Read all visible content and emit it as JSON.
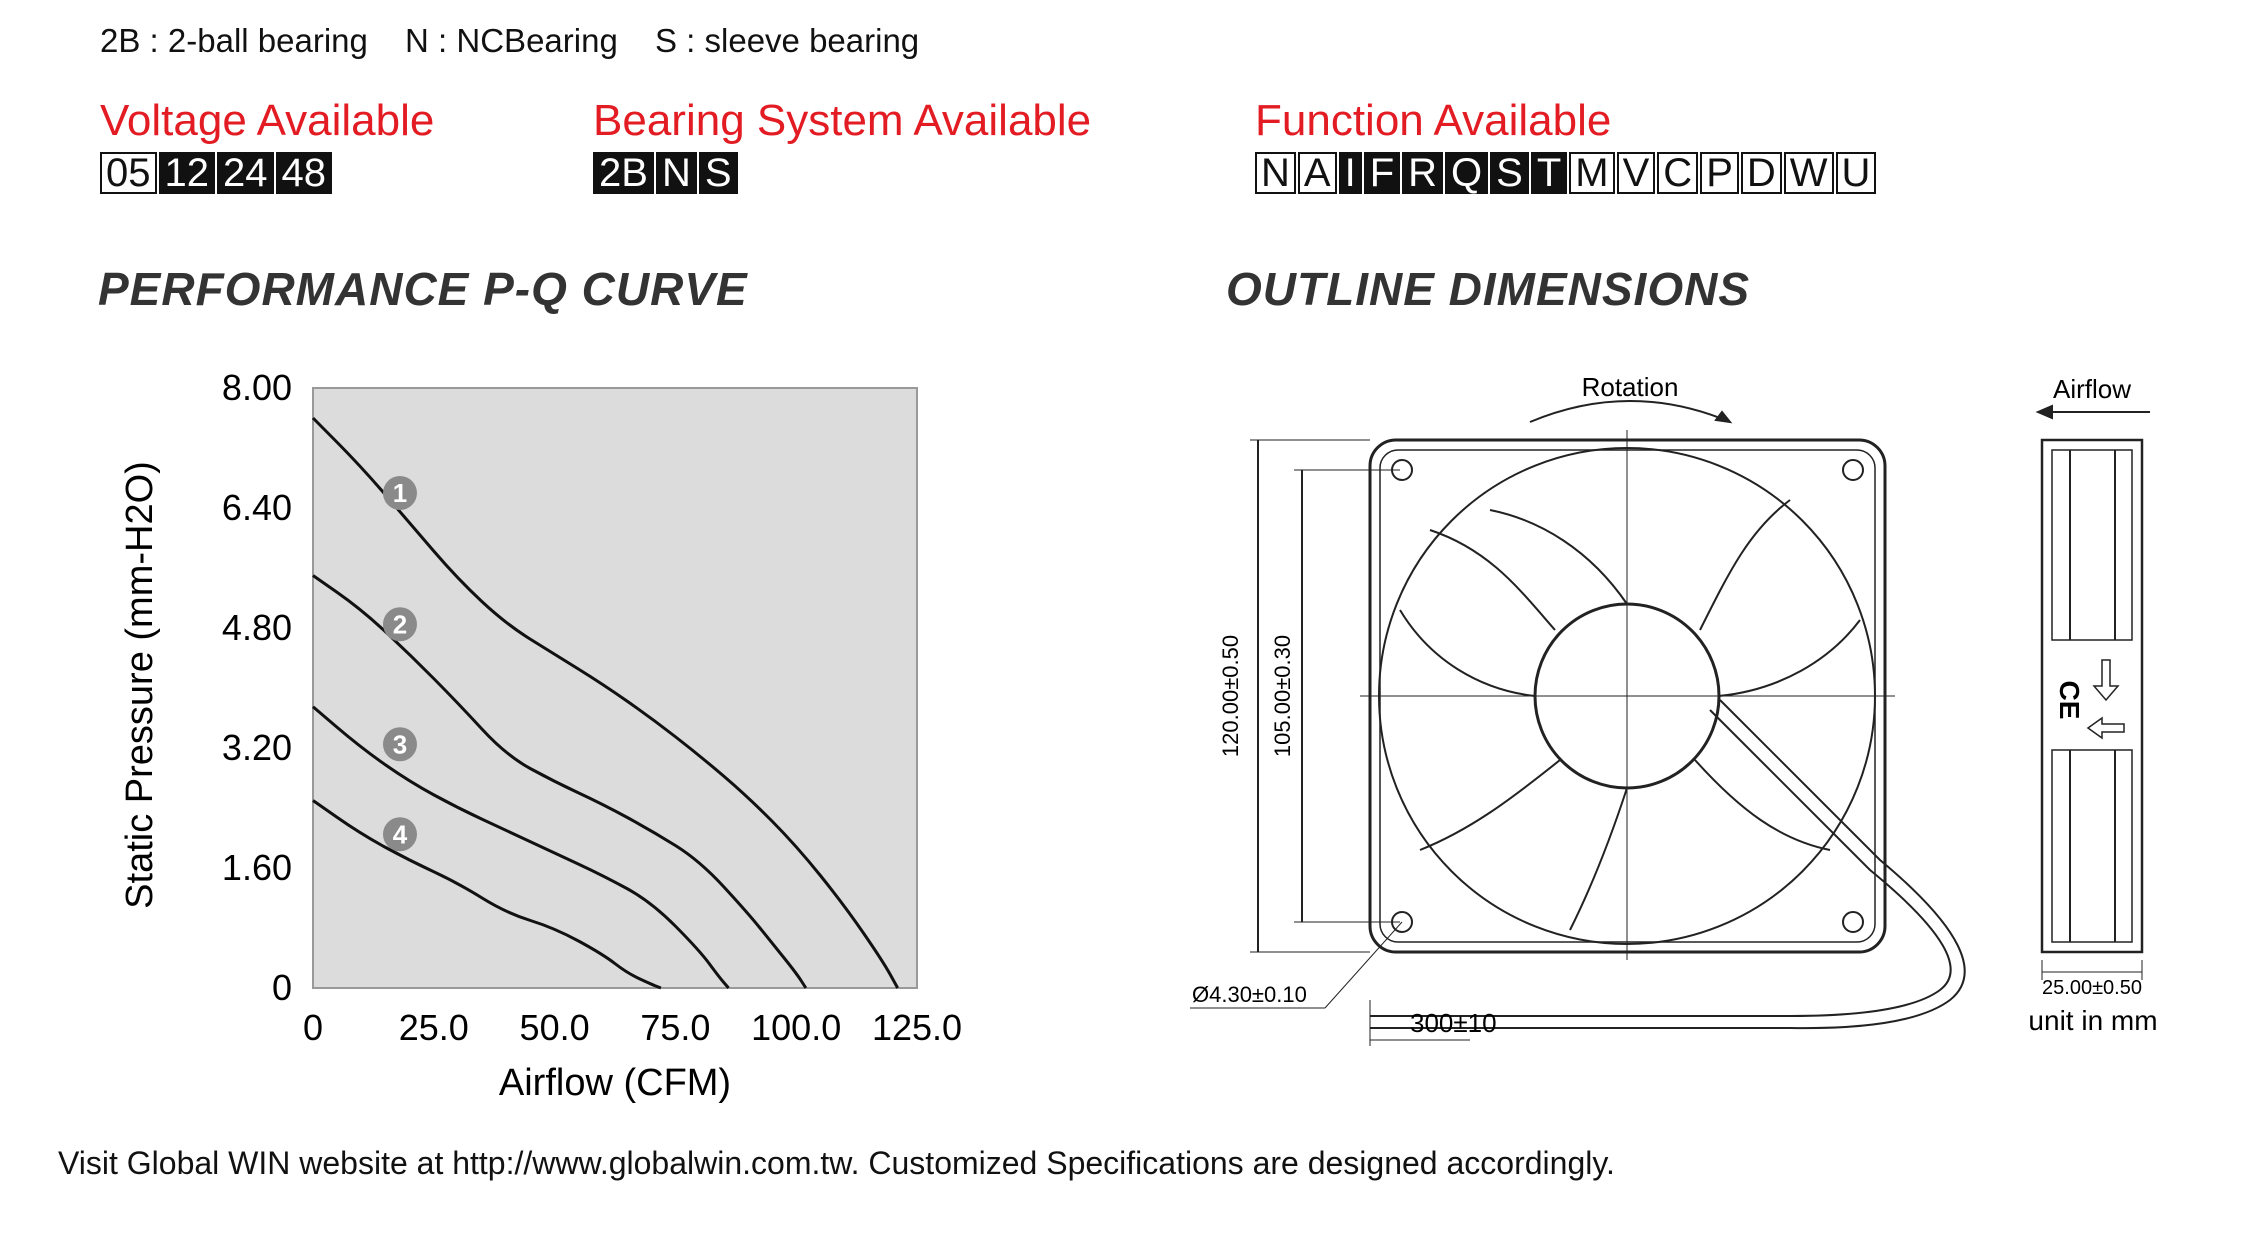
{
  "legend": [
    {
      "code": "2B",
      "desc": "2-ball bearing"
    },
    {
      "code": "N",
      "desc": "NCBearing"
    },
    {
      "code": "S",
      "desc": "sleeve bearing"
    }
  ],
  "legend_sep": " : ",
  "voltage": {
    "title": "Voltage Available",
    "codes": [
      {
        "label": "05",
        "active": false
      },
      {
        "label": "12",
        "active": true
      },
      {
        "label": "24",
        "active": true
      },
      {
        "label": "48",
        "active": true
      }
    ]
  },
  "bearing": {
    "title": "Bearing System Available",
    "codes": [
      {
        "label": "2B",
        "active": true
      },
      {
        "label": "N",
        "active": true
      },
      {
        "label": "S",
        "active": true
      }
    ]
  },
  "function": {
    "title": "Function Available",
    "codes": [
      {
        "label": "N",
        "active": false
      },
      {
        "label": "A",
        "active": false
      },
      {
        "label": "I",
        "active": true
      },
      {
        "label": "F",
        "active": true
      },
      {
        "label": "R",
        "active": true
      },
      {
        "label": "Q",
        "active": true
      },
      {
        "label": "S",
        "active": true
      },
      {
        "label": "T",
        "active": true
      },
      {
        "label": "M",
        "active": false
      },
      {
        "label": "V",
        "active": false
      },
      {
        "label": "C",
        "active": false
      },
      {
        "label": "P",
        "active": false
      },
      {
        "label": "D",
        "active": false
      },
      {
        "label": "W",
        "active": false
      },
      {
        "label": "U",
        "active": false
      }
    ]
  },
  "headings": {
    "curve": "PERFORMANCE P-Q CURVE",
    "outline": "OUTLINE DIMENSIONS"
  },
  "chart_data": {
    "type": "line",
    "xlabel": "Airflow (CFM)",
    "ylabel": "Static Pressure (mm-H2O)",
    "xlim": [
      0,
      125
    ],
    "ylim": [
      0,
      8
    ],
    "xticks": [
      "0",
      "25.0",
      "50.0",
      "75.0",
      "100.0",
      "125.0"
    ],
    "yticks": [
      "0",
      "1.60",
      "3.20",
      "4.80",
      "6.40",
      "8.00"
    ],
    "ytick_values": [
      0,
      1.6,
      3.2,
      4.8,
      6.4,
      8.0
    ],
    "xtick_values": [
      0,
      25,
      50,
      75,
      100,
      125
    ],
    "grid": false,
    "background": "#dcdcdc",
    "series": [
      {
        "marker": "1",
        "label_at": [
          18,
          6.6
        ],
        "x": [
          0,
          10,
          20,
          30,
          40,
          50,
          60,
          70,
          80,
          90,
          100,
          110,
          118,
          121
        ],
        "y": [
          7.6,
          6.95,
          6.2,
          5.45,
          4.85,
          4.45,
          4.05,
          3.6,
          3.1,
          2.55,
          1.9,
          1.1,
          0.35,
          0
        ]
      },
      {
        "marker": "2",
        "label_at": [
          18,
          4.85
        ],
        "x": [
          0,
          10,
          20,
          30,
          40,
          50,
          60,
          70,
          80,
          90,
          95,
          100,
          102
        ],
        "y": [
          5.5,
          5.05,
          4.45,
          3.8,
          3.1,
          2.75,
          2.45,
          2.1,
          1.7,
          1.0,
          0.6,
          0.2,
          0
        ]
      },
      {
        "marker": "3",
        "label_at": [
          18,
          3.25
        ],
        "x": [
          0,
          10,
          20,
          30,
          40,
          50,
          60,
          70,
          80,
          84,
          86
        ],
        "y": [
          3.75,
          3.2,
          2.75,
          2.4,
          2.1,
          1.8,
          1.5,
          1.15,
          0.5,
          0.15,
          0
        ]
      },
      {
        "marker": "4",
        "label_at": [
          18,
          2.05
        ],
        "x": [
          0,
          10,
          20,
          30,
          40,
          50,
          60,
          65,
          70,
          72
        ],
        "y": [
          2.5,
          2.05,
          1.7,
          1.4,
          1.0,
          0.8,
          0.45,
          0.2,
          0.05,
          0
        ]
      }
    ]
  },
  "drawing": {
    "rotation": "Rotation",
    "airflow": "Airflow",
    "dim_outer": "120.00±0.50",
    "dim_hole": "105.00±0.30",
    "hole_dia": "Ø4.30±0.10",
    "cable": "300±10",
    "thickness": "25.00±0.50",
    "unit": "unit in mm",
    "ce": "CE"
  },
  "footer": "Visit Global WIN website at http://www.globalwin.com.tw. Customized Specifications are designed accordingly."
}
